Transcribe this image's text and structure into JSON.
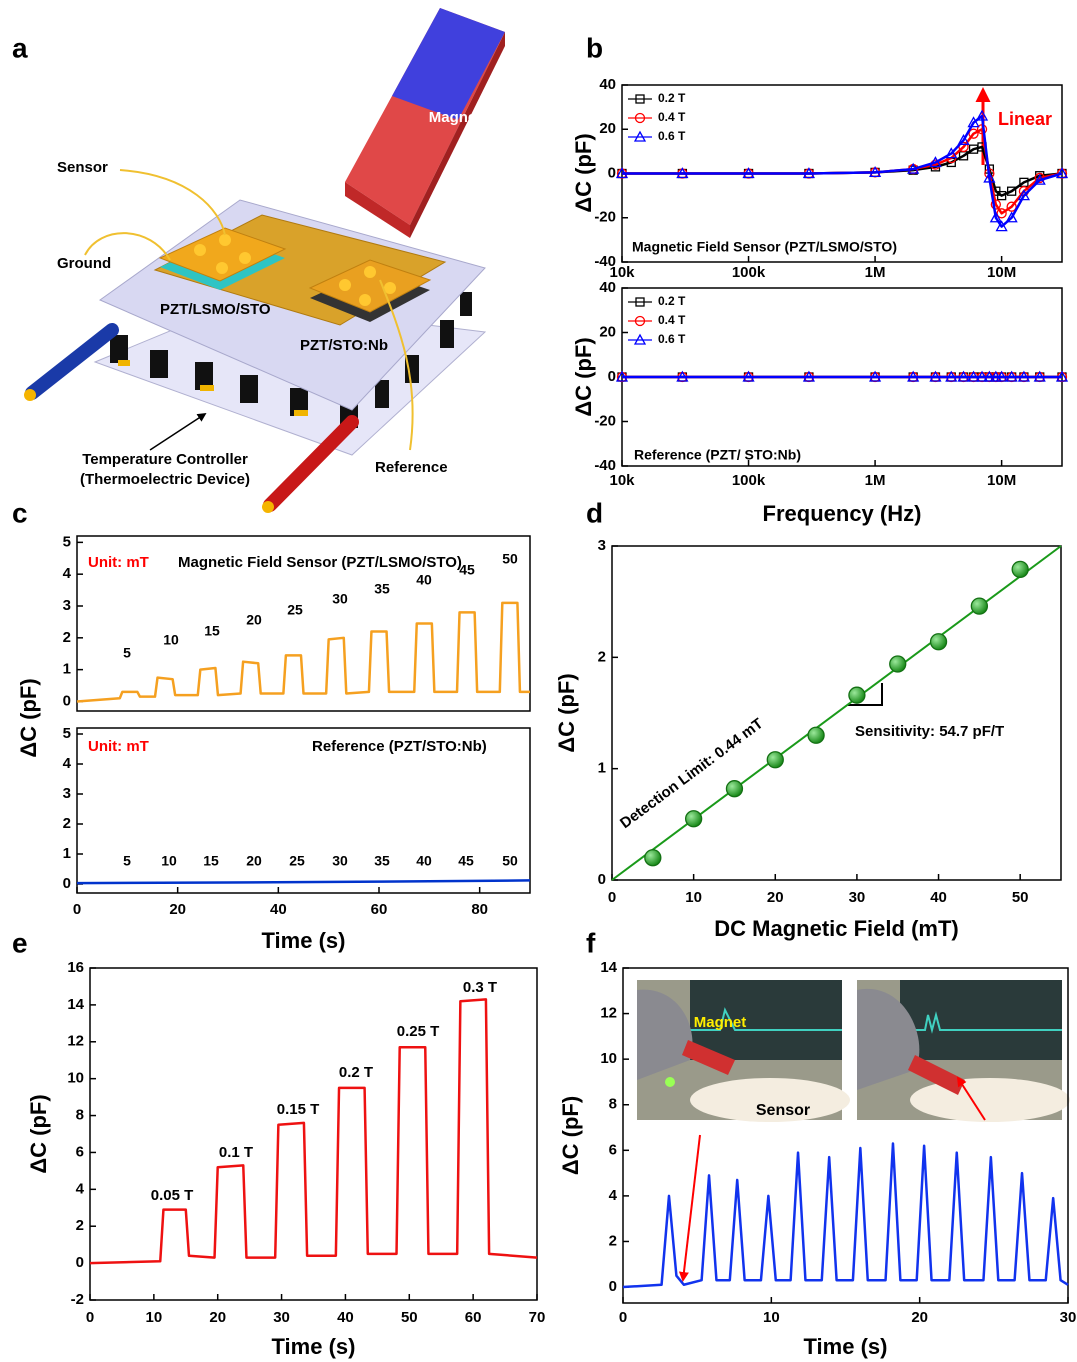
{
  "panel_labels": [
    "a",
    "b",
    "c",
    "d",
    "e",
    "f"
  ],
  "diagram": {
    "labels": [
      "Magnet",
      "Sensor",
      "Ground",
      "PZT/LSMO/STO",
      "PZT/STO:Nb",
      "Temperature Controller",
      "(Thermoelectric Device)",
      "Reference"
    ]
  },
  "chart_data": [
    {
      "type": "line",
      "xscale": "log",
      "xlim": [
        10000,
        30000000
      ],
      "ylim": [
        -40,
        40
      ],
      "yticks": [
        -40,
        -20,
        0,
        20,
        40
      ],
      "xticks": [
        {
          "value": 10000,
          "label": "10k"
        },
        {
          "value": 100000,
          "label": "100k"
        },
        {
          "value": 1000000,
          "label": "1M"
        },
        {
          "value": 10000000,
          "label": "10M"
        }
      ],
      "ylabel": "ΔC (pF)",
      "legend": "upper left",
      "x": [
        10000,
        30000,
        100000,
        300000,
        1000000,
        2000000,
        3000000,
        4000000,
        5000000,
        6000000,
        7000000,
        8000000,
        9000000,
        10000000,
        12000000,
        15000000,
        20000000,
        30000000
      ],
      "series": [
        {
          "name": "0.2 T",
          "color": "#000000",
          "marker": "square",
          "values": [
            0,
            0,
            0,
            0,
            0.5,
            1.5,
            3,
            5,
            8,
            11,
            12,
            2,
            -8,
            -10,
            -8,
            -4,
            -1,
            0
          ]
        },
        {
          "name": "0.4 T",
          "color": "#ff0000",
          "marker": "circle",
          "values": [
            0,
            0,
            0,
            0,
            0.5,
            2,
            4,
            7,
            12,
            18,
            20,
            0,
            -14,
            -18,
            -15,
            -8,
            -2,
            0
          ]
        },
        {
          "name": "0.6 T",
          "color": "#0000ff",
          "marker": "triangle",
          "values": [
            0,
            0,
            0,
            0,
            0.5,
            2,
            5,
            9,
            15,
            23,
            26,
            -2,
            -20,
            -24,
            -20,
            -10,
            -3,
            0
          ]
        }
      ],
      "annotations": [
        {
          "text": "Magnetic Field Sensor (PZT/LSMO/STO)"
        },
        {
          "text": "Linear",
          "color": "#ff0000"
        }
      ]
    },
    {
      "type": "line",
      "xscale": "log",
      "xlim": [
        10000,
        30000000
      ],
      "ylim": [
        -40,
        40
      ],
      "yticks": [
        -40,
        -20,
        0,
        20,
        40
      ],
      "xticks": [
        {
          "value": 10000,
          "label": "10k"
        },
        {
          "value": 100000,
          "label": "100k"
        },
        {
          "value": 1000000,
          "label": "1M"
        },
        {
          "value": 10000000,
          "label": "10M"
        }
      ],
      "ylabel": "ΔC (pF)",
      "xlabel": "Frequency (Hz)",
      "legend": "upper left",
      "x": [
        10000,
        30000,
        100000,
        300000,
        1000000,
        2000000,
        3000000,
        4000000,
        5000000,
        6000000,
        7000000,
        8000000,
        9000000,
        10000000,
        12000000,
        15000000,
        20000000,
        30000000
      ],
      "series": [
        {
          "name": "0.2 T",
          "color": "#000000",
          "marker": "square",
          "values": [
            0,
            0,
            0,
            0,
            0,
            0,
            0,
            0,
            0,
            0,
            0,
            0,
            0,
            0,
            0,
            0,
            0,
            0
          ]
        },
        {
          "name": "0.4 T",
          "color": "#ff0000",
          "marker": "circle",
          "values": [
            0,
            0,
            0,
            0,
            0,
            0,
            0,
            0,
            0,
            0,
            0,
            0,
            0,
            0,
            0,
            0,
            0,
            0
          ]
        },
        {
          "name": "0.6 T",
          "color": "#0000ff",
          "marker": "triangle",
          "values": [
            0,
            0,
            0,
            0,
            0,
            0,
            0,
            0,
            0,
            0,
            0,
            0,
            0,
            0,
            0,
            0,
            0,
            0
          ]
        }
      ],
      "annotations": [
        {
          "text": "Reference (PZT/ STO:Nb)"
        }
      ]
    },
    {
      "type": "line",
      "xlim": [
        0,
        90
      ],
      "ylim": [
        -0.3,
        5.2
      ],
      "yticks": [
        0,
        1,
        2,
        3,
        4,
        5
      ],
      "color": "#f5a020",
      "x": [
        0,
        8.5,
        9,
        12,
        12.5,
        15.5,
        16,
        19,
        19.5,
        24,
        24.5,
        27.5,
        28,
        32.5,
        33,
        36,
        36.5,
        41,
        41.5,
        44.5,
        45,
        49.5,
        50,
        53,
        53.5,
        58,
        58.5,
        61.5,
        62,
        67,
        67.5,
        70.5,
        71,
        75.5,
        76,
        79,
        79.5,
        84,
        84.5,
        87.5,
        88,
        90
      ],
      "values": [
        0,
        0.1,
        0.3,
        0.3,
        0.15,
        0.15,
        0.75,
        0.7,
        0.2,
        0.2,
        1.0,
        1.05,
        0.2,
        0.25,
        1.25,
        1.2,
        0.25,
        0.25,
        1.45,
        1.45,
        0.25,
        0.25,
        1.95,
        2.0,
        0.25,
        0.3,
        2.2,
        2.2,
        0.3,
        0.3,
        2.45,
        2.45,
        0.3,
        0.3,
        2.8,
        2.8,
        0.3,
        0.3,
        3.1,
        3.1,
        0.3,
        0.3
      ],
      "annotations": [
        {
          "text": "Unit: mT",
          "color": "#ff0000"
        },
        {
          "text": "Magnetic  Field  Sensor  (PZT/LSMO/STO)"
        },
        {
          "text": "5"
        },
        {
          "text": "10"
        },
        {
          "text": "15"
        },
        {
          "text": "20"
        },
        {
          "text": "25"
        },
        {
          "text": "30"
        },
        {
          "text": "35"
        },
        {
          "text": "40"
        },
        {
          "text": "45"
        },
        {
          "text": "50"
        }
      ]
    },
    {
      "type": "line",
      "xlim": [
        0,
        90
      ],
      "ylim": [
        -0.3,
        5.2
      ],
      "yticks": [
        0,
        1,
        2,
        3,
        4,
        5
      ],
      "xticks": [
        0,
        20,
        40,
        60,
        80
      ],
      "color": "#0033cc",
      "xlabel": "Time (s)",
      "ylabel": "ΔC (pF)",
      "x": [
        0,
        30,
        60,
        90
      ],
      "values": [
        0.03,
        0.05,
        0.08,
        0.12
      ],
      "annotations": [
        {
          "text": "Unit: mT",
          "color": "#ff0000"
        },
        {
          "text": "Reference  (PZT/STO:Nb)"
        },
        {
          "text": "5"
        },
        {
          "text": "10"
        },
        {
          "text": "15"
        },
        {
          "text": "20"
        },
        {
          "text": "25"
        },
        {
          "text": "30"
        },
        {
          "text": "35"
        },
        {
          "text": "40"
        },
        {
          "text": "45"
        },
        {
          "text": "50"
        }
      ]
    },
    {
      "type": "scatter",
      "xlim": [
        0,
        55
      ],
      "ylim": [
        0,
        3
      ],
      "xticks": [
        0,
        10,
        20,
        30,
        40,
        50
      ],
      "yticks": [
        0,
        1,
        2,
        3
      ],
      "color": "#22a022",
      "xlabel": "DC Magnetic Field (mT)",
      "ylabel": "ΔC (pF)",
      "x": [
        5,
        10,
        15,
        20,
        25,
        30,
        35,
        40,
        45,
        50
      ],
      "values": [
        0.2,
        0.55,
        0.82,
        1.08,
        1.3,
        1.66,
        1.94,
        2.14,
        2.46,
        2.79
      ],
      "fit_line": {
        "x": [
          0,
          55
        ],
        "values": [
          0,
          3.0
        ],
        "color": "#1a9a1a"
      },
      "annotations": [
        {
          "text": "Detection Limit: 0.44 mT"
        },
        {
          "text": "Sensitivity:  54.7 pF/T"
        }
      ]
    },
    {
      "type": "line",
      "xlim": [
        0,
        70
      ],
      "ylim": [
        -2,
        16
      ],
      "xticks": [
        0,
        10,
        20,
        30,
        40,
        50,
        60,
        70
      ],
      "yticks": [
        -2,
        0,
        2,
        4,
        6,
        8,
        10,
        12,
        14,
        16
      ],
      "color": "#ee1111",
      "xlabel": "Time (s)",
      "ylabel": "ΔC (pF)",
      "x": [
        0,
        11,
        11.5,
        15,
        15.5,
        19.5,
        20,
        24,
        24.5,
        29,
        29.5,
        33.5,
        34,
        38.5,
        39,
        43,
        43.5,
        48,
        48.5,
        52.5,
        53,
        57.5,
        58,
        62,
        62.5,
        70
      ],
      "values": [
        0,
        0.1,
        2.9,
        2.9,
        0.4,
        0.3,
        5.2,
        5.3,
        0.3,
        0.3,
        7.5,
        7.6,
        0.4,
        0.4,
        9.5,
        9.5,
        0.5,
        0.5,
        11.7,
        11.7,
        0.5,
        0.5,
        14.2,
        14.3,
        0.5,
        0.3
      ],
      "annotations": [
        {
          "text": "0.05 T"
        },
        {
          "text": "0.1 T"
        },
        {
          "text": "0.15 T"
        },
        {
          "text": "0.2 T"
        },
        {
          "text": "0.25 T"
        },
        {
          "text": "0.3 T"
        }
      ]
    },
    {
      "type": "line",
      "xlim": [
        0,
        30
      ],
      "ylim": [
        -0.7,
        14
      ],
      "xticks": [
        0,
        10,
        20,
        30
      ],
      "yticks": [
        0,
        2,
        4,
        6,
        8,
        10,
        12,
        14
      ],
      "color": "#1133ee",
      "xlabel": "Time (s)",
      "ylabel": "ΔC (pF)",
      "x": [
        0,
        2.6,
        3.1,
        3.6,
        4.1,
        5.3,
        5.8,
        6.3,
        7.2,
        7.7,
        8.2,
        9.3,
        9.8,
        10.3,
        11.3,
        11.8,
        12.3,
        13.4,
        13.9,
        14.4,
        15.5,
        16.0,
        16.5,
        17.7,
        18.2,
        18.7,
        19.8,
        20.3,
        20.8,
        22.0,
        22.5,
        23.0,
        24.3,
        24.8,
        25.3,
        26.4,
        26.9,
        27.4,
        28.5,
        29.0,
        29.5,
        30
      ],
      "values": [
        0,
        0.1,
        4.0,
        0.5,
        0.1,
        0.3,
        4.9,
        0.3,
        0.3,
        4.7,
        0.3,
        0.3,
        4.0,
        0.3,
        0.3,
        5.9,
        0.3,
        0.3,
        5.7,
        0.3,
        0.3,
        6.1,
        0.3,
        0.3,
        6.3,
        0.3,
        0.3,
        6.2,
        0.3,
        0.3,
        5.9,
        0.3,
        0.3,
        5.7,
        0.3,
        0.3,
        5.0,
        0.3,
        0.3,
        3.9,
        0.3,
        0.1
      ],
      "annotations": [
        {
          "text": "Magnet",
          "color": "#ffee00"
        },
        {
          "text": "Sensor"
        }
      ]
    }
  ]
}
